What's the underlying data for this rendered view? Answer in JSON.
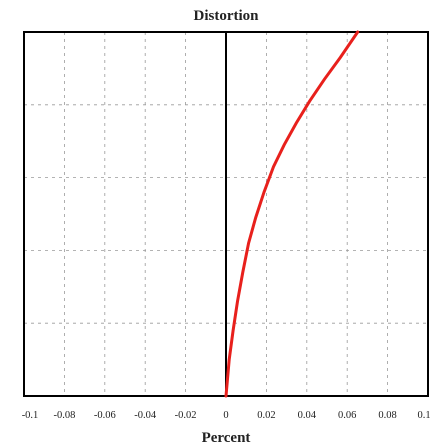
{
  "chart_data": {
    "type": "line",
    "title": "Distortion",
    "xlabel": "Percent",
    "ylabel": "",
    "xlim": [
      -0.1,
      0.1
    ],
    "ylim": [
      0,
      1
    ],
    "xticks": [
      -0.1,
      -0.08,
      -0.06,
      -0.04,
      -0.02,
      0,
      0.02,
      0.04,
      0.06,
      0.08,
      0.1
    ],
    "xtick_labels": [
      "-0.1",
      "-0.08",
      "-0.06",
      "-0.04",
      "-0.02",
      "0",
      "0.02",
      "0.04",
      "0.06",
      "0.08",
      "0.1"
    ],
    "yticks": [
      0.2,
      0.4,
      0.6,
      0.8
    ],
    "grid": true,
    "series": [
      {
        "color": "#e8201c",
        "x": [
          0,
          0.0016,
          0.0035,
          0.0057,
          0.0083,
          0.0112,
          0.0147,
          0.0188,
          0.0235,
          0.0288,
          0.0348,
          0.0414,
          0.0487,
          0.0566,
          0.0652
        ],
        "y": [
          0,
          0.1,
          0.18,
          0.26,
          0.34,
          0.42,
          0.49,
          0.56,
          0.63,
          0.69,
          0.75,
          0.81,
          0.87,
          0.93,
          1.0
        ]
      }
    ]
  },
  "colors": {
    "axis": "#000000",
    "grid": "#9a9a9a",
    "curve": "#e8201c"
  }
}
